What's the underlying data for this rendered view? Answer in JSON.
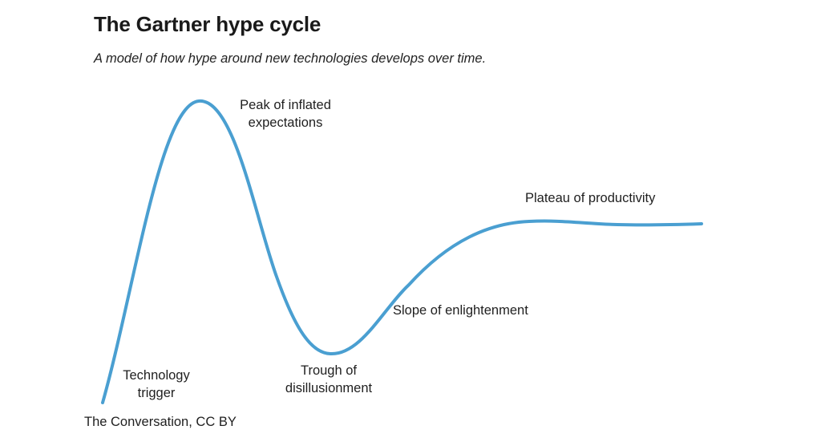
{
  "header": {
    "title": "The Gartner hype cycle",
    "subtitle": "A model of how hype around new technologies develops over time."
  },
  "stages": {
    "peak": "Peak of inflated\nexpectations",
    "trigger": "Technology\ntrigger",
    "trough": "Trough of\ndisillusionment",
    "slope": "Slope of enlightenment",
    "plateau": "Plateau of productivity"
  },
  "footer": {
    "credit": "The Conversation, CC BY"
  },
  "colors": {
    "curve": "#4a9fd1",
    "text": "#1a1a1a"
  }
}
